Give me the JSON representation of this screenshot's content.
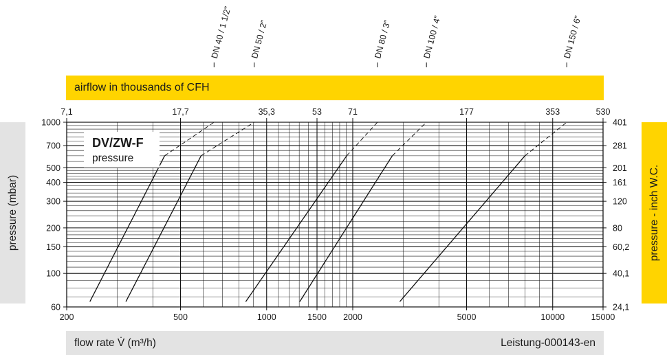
{
  "top_band": {
    "label": "airflow in thousands of CFH"
  },
  "bottom_band": {
    "label": "flow rate V̇ (m³/h)",
    "code": "Leistung-000143-en"
  },
  "left_axis_label": "pressure (mbar)",
  "right_axis_label": "pressure - inch W.C.",
  "chart_box": {
    "title": "DV/ZW-F",
    "subtitle": "pressure"
  },
  "colors": {
    "yellow": "#ffd400",
    "grey": "#e3e3e3",
    "line": "#111111"
  },
  "chart_data": {
    "type": "line",
    "x_scale": "log",
    "y_scale": "log",
    "xlim": [
      200,
      15000
    ],
    "ylim": [
      60,
      1000
    ],
    "xlabel": "flow rate V̇ (m³/h)",
    "ylabel": "pressure (mbar)",
    "x_ticks": [
      {
        "value": 200,
        "label": "200"
      },
      {
        "value": 500,
        "label": "500"
      },
      {
        "value": 1000,
        "label": "1000"
      },
      {
        "value": 1500,
        "label": "1500"
      },
      {
        "value": 2000,
        "label": "2000"
      },
      {
        "value": 5000,
        "label": "5000"
      },
      {
        "value": 10000,
        "label": "10000"
      },
      {
        "value": 15000,
        "label": "15000"
      }
    ],
    "top_ticks": [
      {
        "value": 200,
        "label": "7,1"
      },
      {
        "value": 500,
        "label": "17,7"
      },
      {
        "value": 1000,
        "label": "35,3"
      },
      {
        "value": 1500,
        "label": "53"
      },
      {
        "value": 2000,
        "label": "71"
      },
      {
        "value": 5000,
        "label": "177"
      },
      {
        "value": 10000,
        "label": "353"
      },
      {
        "value": 15000,
        "label": "530"
      }
    ],
    "y_ticks": [
      {
        "value": 60,
        "label": "60"
      },
      {
        "value": 100,
        "label": "100"
      },
      {
        "value": 150,
        "label": "150"
      },
      {
        "value": 200,
        "label": "200"
      },
      {
        "value": 300,
        "label": "300"
      },
      {
        "value": 400,
        "label": "400"
      },
      {
        "value": 500,
        "label": "500"
      },
      {
        "value": 700,
        "label": "700"
      },
      {
        "value": 1000,
        "label": "1000"
      }
    ],
    "right_ticks": [
      {
        "value": 60,
        "label": "24,1"
      },
      {
        "value": 100,
        "label": "40,1"
      },
      {
        "value": 150,
        "label": "60,2"
      },
      {
        "value": 200,
        "label": "80"
      },
      {
        "value": 300,
        "label": "120"
      },
      {
        "value": 400,
        "label": "161"
      },
      {
        "value": 500,
        "label": "201"
      },
      {
        "value": 700,
        "label": "281"
      },
      {
        "value": 1000,
        "label": "401"
      }
    ],
    "series": [
      {
        "name": "DN 40 / 1 1/2”",
        "points": [
          [
            241,
            65
          ],
          [
            440,
            600
          ]
        ],
        "dashed_to": [
          655,
          1000
        ]
      },
      {
        "name": "DN 50 / 2”",
        "points": [
          [
            322,
            65
          ],
          [
            590,
            600
          ]
        ],
        "dashed_to": [
          905,
          1000
        ]
      },
      {
        "name": "DN 80 / 3”",
        "points": [
          [
            845,
            65
          ],
          [
            1905,
            600
          ]
        ],
        "dashed_to": [
          2440,
          1000
        ]
      },
      {
        "name": "DN 100 / 4”",
        "points": [
          [
            1305,
            65
          ],
          [
            2750,
            600
          ]
        ],
        "dashed_to": [
          3620,
          1000
        ]
      },
      {
        "name": "DN 150 / 6”",
        "points": [
          [
            2920,
            65
          ],
          [
            8000,
            600
          ]
        ],
        "dashed_to": [
          11200,
          1000
        ]
      }
    ]
  }
}
